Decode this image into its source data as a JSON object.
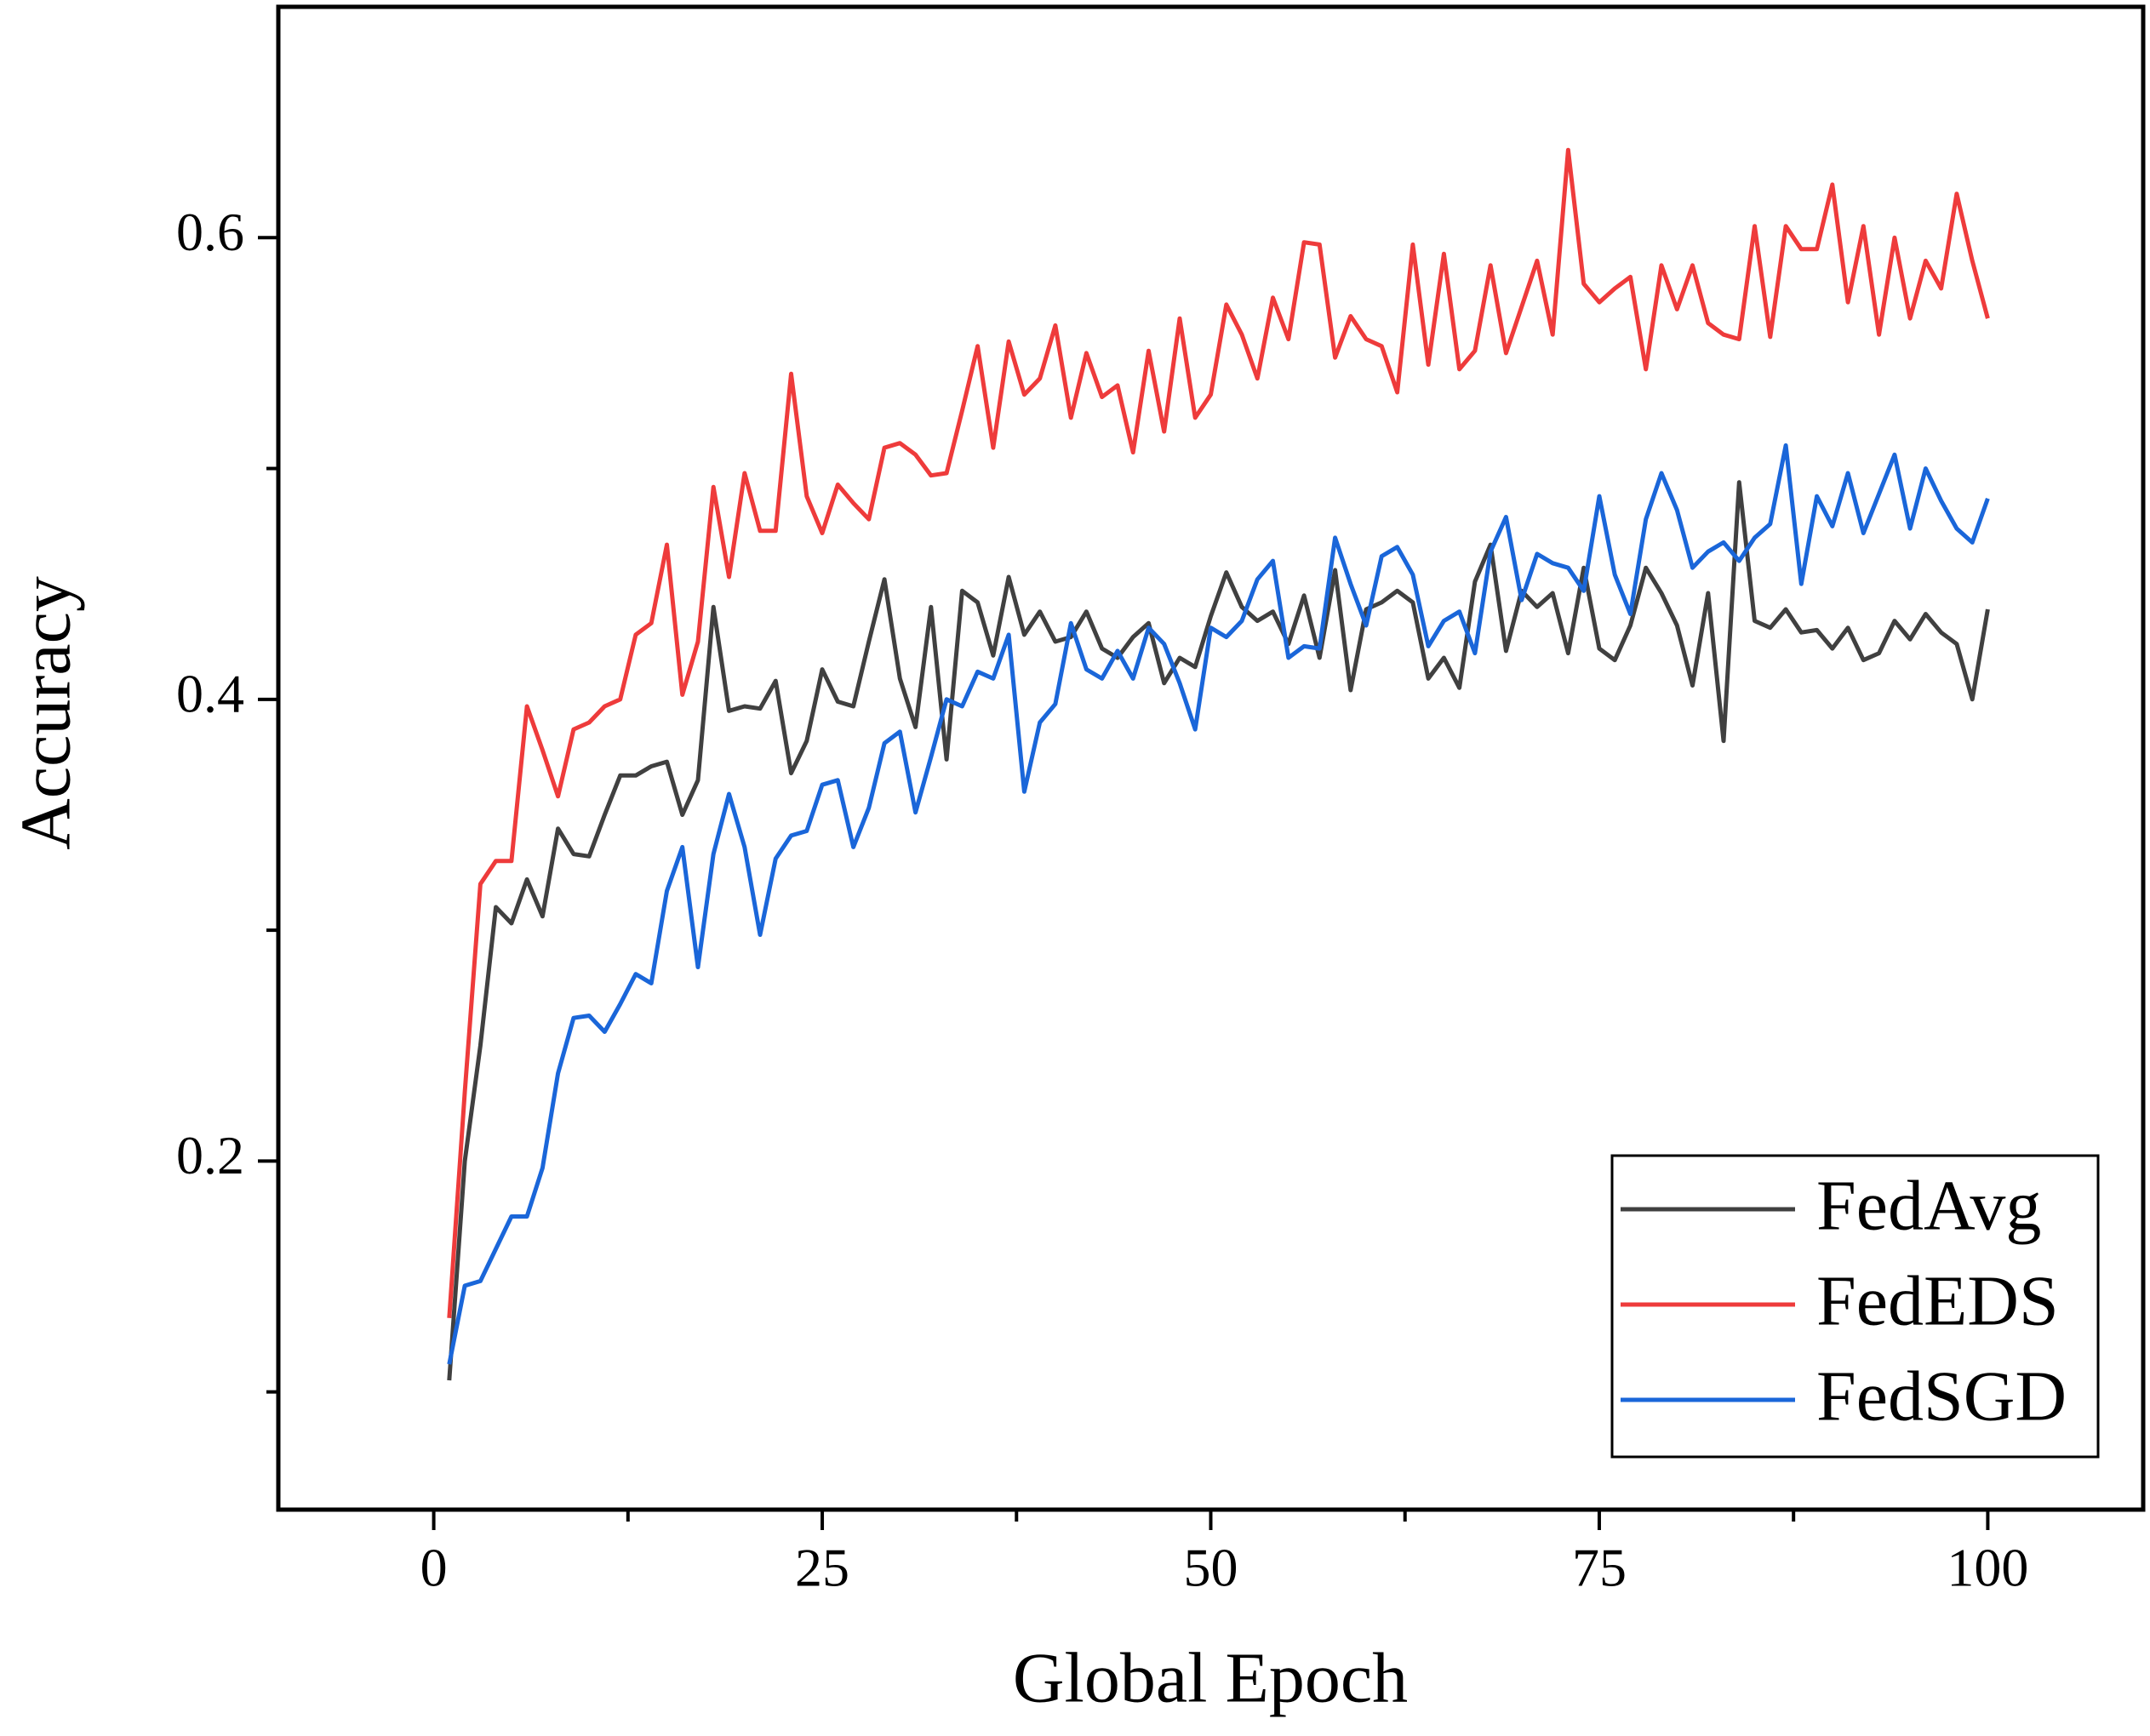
{
  "chart_data": {
    "type": "line",
    "x_label": "Global Epoch",
    "y_label": "Accuracy",
    "x": [
      1,
      2,
      3,
      4,
      5,
      6,
      7,
      8,
      9,
      10,
      11,
      12,
      13,
      14,
      15,
      16,
      17,
      18,
      19,
      20,
      21,
      22,
      23,
      24,
      25,
      26,
      27,
      28,
      29,
      30,
      31,
      32,
      33,
      34,
      35,
      36,
      37,
      38,
      39,
      40,
      41,
      42,
      43,
      44,
      45,
      46,
      47,
      48,
      49,
      50,
      51,
      52,
      53,
      54,
      55,
      56,
      57,
      58,
      59,
      60,
      61,
      62,
      63,
      64,
      65,
      66,
      67,
      68,
      69,
      70,
      71,
      72,
      73,
      74,
      75,
      76,
      77,
      78,
      79,
      80,
      81,
      82,
      83,
      84,
      85,
      86,
      87,
      88,
      89,
      90,
      91,
      92,
      93,
      94,
      95,
      96,
      97,
      98,
      99,
      100
    ],
    "series": [
      {
        "name": "FedAvg",
        "color": "#404040",
        "values": [
          0.105,
          0.2,
          0.25,
          0.31,
          0.303,
          0.322,
          0.306,
          0.344,
          0.333,
          0.332,
          0.35,
          0.367,
          0.367,
          0.371,
          0.373,
          0.35,
          0.365,
          0.44,
          0.395,
          0.397,
          0.396,
          0.408,
          0.368,
          0.382,
          0.413,
          0.399,
          0.397,
          0.425,
          0.452,
          0.409,
          0.388,
          0.44,
          0.374,
          0.447,
          0.442,
          0.419,
          0.453,
          0.428,
          0.438,
          0.425,
          0.427,
          0.438,
          0.422,
          0.418,
          0.427,
          0.433,
          0.407,
          0.418,
          0.414,
          0.436,
          0.455,
          0.44,
          0.434,
          0.438,
          0.424,
          0.445,
          0.418,
          0.456,
          0.404,
          0.439,
          0.442,
          0.447,
          0.442,
          0.409,
          0.418,
          0.405,
          0.451,
          0.467,
          0.421,
          0.447,
          0.44,
          0.446,
          0.42,
          0.457,
          0.422,
          0.417,
          0.432,
          0.457,
          0.446,
          0.432,
          0.406,
          0.446,
          0.382,
          0.494,
          0.434,
          0.431,
          0.439,
          0.429,
          0.43,
          0.422,
          0.431,
          0.417,
          0.42,
          0.434,
          0.426,
          0.437,
          0.429,
          0.424,
          0.4,
          0.439
        ]
      },
      {
        "name": "FedEDS",
        "color": "#ee3b3b",
        "values": [
          0.132,
          0.23,
          0.32,
          0.33,
          0.33,
          0.397,
          0.378,
          0.358,
          0.387,
          0.39,
          0.397,
          0.4,
          0.428,
          0.433,
          0.467,
          0.402,
          0.425,
          0.492,
          0.453,
          0.498,
          0.473,
          0.473,
          0.541,
          0.488,
          0.472,
          0.493,
          0.485,
          0.478,
          0.509,
          0.511,
          0.506,
          0.497,
          0.498,
          0.525,
          0.553,
          0.509,
          0.555,
          0.532,
          0.539,
          0.562,
          0.522,
          0.55,
          0.531,
          0.536,
          0.507,
          0.551,
          0.516,
          0.565,
          0.522,
          0.532,
          0.571,
          0.558,
          0.539,
          0.574,
          0.556,
          0.598,
          0.597,
          0.548,
          0.566,
          0.556,
          0.553,
          0.533,
          0.597,
          0.545,
          0.593,
          0.543,
          0.551,
          0.588,
          0.55,
          0.57,
          0.59,
          0.558,
          0.638,
          0.58,
          0.572,
          0.578,
          0.583,
          0.543,
          0.588,
          0.569,
          0.588,
          0.563,
          0.558,
          0.556,
          0.605,
          0.557,
          0.605,
          0.595,
          0.595,
          0.623,
          0.572,
          0.605,
          0.558,
          0.6,
          0.565,
          0.59,
          0.578,
          0.619,
          0.59,
          0.565
        ]
      },
      {
        "name": "FedSGD",
        "color": "#1a66d9",
        "values": [
          0.112,
          0.146,
          0.148,
          0.162,
          0.176,
          0.176,
          0.197,
          0.238,
          0.262,
          0.263,
          0.256,
          0.268,
          0.281,
          0.277,
          0.317,
          0.336,
          0.284,
          0.333,
          0.359,
          0.336,
          0.298,
          0.331,
          0.341,
          0.343,
          0.363,
          0.365,
          0.336,
          0.353,
          0.381,
          0.386,
          0.351,
          0.375,
          0.4,
          0.397,
          0.412,
          0.409,
          0.428,
          0.36,
          0.39,
          0.398,
          0.433,
          0.413,
          0.409,
          0.421,
          0.409,
          0.431,
          0.424,
          0.407,
          0.387,
          0.431,
          0.427,
          0.434,
          0.452,
          0.46,
          0.418,
          0.423,
          0.422,
          0.47,
          0.45,
          0.432,
          0.462,
          0.466,
          0.454,
          0.423,
          0.434,
          0.438,
          0.42,
          0.464,
          0.479,
          0.443,
          0.463,
          0.459,
          0.457,
          0.447,
          0.488,
          0.454,
          0.437,
          0.478,
          0.498,
          0.482,
          0.457,
          0.464,
          0.468,
          0.46,
          0.47,
          0.476,
          0.51,
          0.45,
          0.488,
          0.475,
          0.498,
          0.472,
          0.489,
          0.506,
          0.474,
          0.5,
          0.486,
          0.474,
          0.468,
          0.487
        ]
      }
    ],
    "xlim": [
      -10,
      110
    ],
    "ylim": [
      0.049,
      0.7
    ],
    "xticks": [
      0,
      25,
      50,
      75,
      100
    ],
    "yticks": [
      0.2,
      0.4,
      0.6
    ],
    "xminorticks": [
      12.5,
      37.5,
      62.5,
      87.5
    ],
    "yminorticks": [
      0.1,
      0.3,
      0.5
    ],
    "legend": "lower right"
  }
}
